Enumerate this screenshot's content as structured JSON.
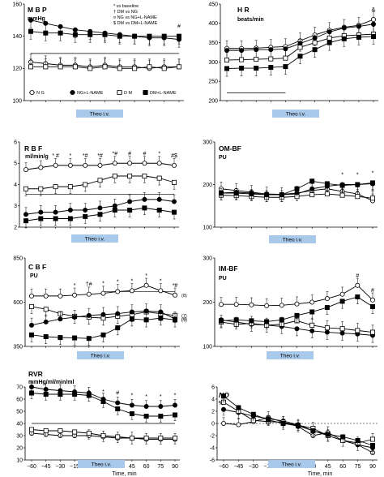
{
  "colors": {
    "theo_box": "#a9c9ea",
    "line": "#000000",
    "open_fill": "#ffffff",
    "filled": "#000000"
  },
  "x_axis": {
    "ticks": [
      -60,
      -45,
      -30,
      -15,
      0,
      15,
      30,
      45,
      60,
      75,
      90
    ],
    "tick_labels": [
      "−60",
      "−45",
      "−30",
      "−15",
      "0",
      "15",
      "30",
      "45",
      "60",
      "75",
      "90"
    ],
    "label": "Time, min"
  },
  "theo_label": "Theo i.v.",
  "legend_note": [
    "* vs baseline",
    "† DM vs NG",
    "¤ NG vs NG+L-NAME",
    "$ DM vs DM+L-NAME"
  ],
  "legend_series": [
    "N G",
    "NG+L-NAME",
    "D M",
    "DM+L-NAME"
  ],
  "chart_data": [
    {
      "id": "mbp",
      "type": "line",
      "title": "M B P",
      "unit": "mmHg",
      "ylim": [
        100,
        160
      ],
      "yticks": [
        100,
        120,
        140,
        160
      ],
      "x": [
        -60,
        -45,
        -30,
        -15,
        0,
        15,
        30,
        45,
        60,
        75,
        90
      ],
      "series": [
        {
          "name": "N G",
          "marker": "circle-open",
          "values": [
            124,
            123,
            122,
            122,
            121,
            122,
            121,
            121,
            120,
            121,
            121
          ]
        },
        {
          "name": "NG+L-NAME",
          "marker": "circle-filled",
          "values": [
            150,
            148,
            146,
            144,
            143,
            142,
            141,
            140,
            139,
            139,
            138
          ]
        },
        {
          "name": "D M",
          "marker": "square-open",
          "values": [
            121,
            121,
            121,
            121,
            120,
            121,
            120,
            120,
            121,
            120,
            121
          ]
        },
        {
          "name": "DM+L-NAME",
          "marker": "square-filled",
          "values": [
            143,
            142,
            142,
            141,
            141,
            141,
            140,
            140,
            140,
            140,
            140
          ]
        }
      ],
      "annotations": [
        "#"
      ]
    },
    {
      "id": "hr",
      "type": "line",
      "title": "H R",
      "unit": "beats/min",
      "ylim": [
        200,
        450
      ],
      "yticks": [
        200,
        250,
        300,
        350,
        400,
        450
      ],
      "x": [
        -60,
        -45,
        -30,
        -15,
        0,
        15,
        30,
        45,
        60,
        75,
        90
      ],
      "series": [
        {
          "name": "N G",
          "marker": "circle-open",
          "values": [
            335,
            335,
            336,
            338,
            340,
            355,
            370,
            382,
            390,
            395,
            410
          ]
        },
        {
          "name": "NG+L-NAME",
          "marker": "circle-filled",
          "values": [
            330,
            330,
            332,
            332,
            334,
            348,
            362,
            378,
            388,
            392,
            398
          ]
        },
        {
          "name": "D M",
          "marker": "square-open",
          "values": [
            305,
            306,
            307,
            308,
            310,
            338,
            350,
            362,
            368,
            370,
            372
          ]
        },
        {
          "name": "DM+L-NAME",
          "marker": "square-filled",
          "values": [
            283,
            284,
            284,
            286,
            288,
            315,
            332,
            350,
            360,
            364,
            366
          ]
        }
      ],
      "annotations": [
        "&"
      ]
    },
    {
      "id": "rbf",
      "type": "line",
      "title": "R B F",
      "unit": "ml/min/g",
      "ylim": [
        2,
        6
      ],
      "yticks": [
        2,
        3,
        4,
        5,
        6
      ],
      "x": [
        -60,
        -45,
        -30,
        -15,
        0,
        15,
        30,
        45,
        60,
        75,
        90
      ],
      "series": [
        {
          "name": "N G",
          "marker": "circle-open",
          "values": [
            4.7,
            4.8,
            4.9,
            4.9,
            4.9,
            4.9,
            5.0,
            5.0,
            5.0,
            5.0,
            4.9
          ]
        },
        {
          "name": "D M",
          "marker": "square-open",
          "values": [
            3.8,
            3.8,
            3.9,
            3.9,
            4.0,
            4.2,
            4.4,
            4.4,
            4.4,
            4.3,
            4.1
          ]
        },
        {
          "name": "NG+L-NAME",
          "marker": "circle-filled",
          "values": [
            2.6,
            2.7,
            2.7,
            2.8,
            2.8,
            2.9,
            3.0,
            3.2,
            3.3,
            3.3,
            3.2
          ]
        },
        {
          "name": "DM+L-NAME",
          "marker": "square-filled",
          "values": [
            2.3,
            2.4,
            2.4,
            2.4,
            2.5,
            2.6,
            2.8,
            2.8,
            2.9,
            2.8,
            2.7
          ]
        }
      ],
      "annotations": [
        "* #",
        "*",
        "*#",
        "*#",
        "*#",
        "#",
        "#",
        "*",
        "#$"
      ]
    },
    {
      "id": "om_bf",
      "type": "line",
      "title": "OM-BF",
      "unit": "PU",
      "ylim": [
        100,
        300
      ],
      "yticks": [
        100,
        200,
        300
      ],
      "x": [
        -60,
        -45,
        -30,
        -15,
        0,
        15,
        30,
        45,
        60,
        75,
        90
      ],
      "series": [
        {
          "name": "N G",
          "marker": "circle-open",
          "values": [
            190,
            186,
            182,
            178,
            177,
            180,
            186,
            190,
            184,
            178,
            162
          ]
        },
        {
          "name": "NG+L-NAME",
          "marker": "circle-filled",
          "values": [
            180,
            182,
            180,
            176,
            176,
            178,
            190,
            196,
            200,
            200,
            202
          ]
        },
        {
          "name": "D M",
          "marker": "square-open",
          "values": [
            175,
            174,
            172,
            170,
            170,
            172,
            176,
            178,
            175,
            172,
            168
          ]
        },
        {
          "name": "DM+L-NAME",
          "marker": "square-filled",
          "values": [
            180,
            180,
            178,
            176,
            176,
            190,
            208,
            202,
            198,
            200,
            204
          ]
        }
      ],
      "annotations": [
        "*",
        "*",
        "*"
      ]
    },
    {
      "id": "cbf",
      "type": "line",
      "title": "C B F",
      "unit": "PU",
      "ylim": [
        350,
        850
      ],
      "yticks": [
        350,
        600,
        850
      ],
      "x": [
        -60,
        -45,
        -30,
        -15,
        0,
        15,
        30,
        45,
        60,
        75,
        90
      ],
      "series": [
        {
          "name": "N G",
          "marker": "circle-open",
          "values": [
            635,
            635,
            635,
            640,
            645,
            650,
            660,
            665,
            695,
            665,
            640
          ]
        },
        {
          "name": "D M",
          "marker": "square-open",
          "values": [
            575,
            560,
            535,
            520,
            515,
            510,
            520,
            530,
            545,
            535,
            525
          ]
        },
        {
          "name": "NG+L-NAME",
          "marker": "circle-filled",
          "values": [
            470,
            488,
            505,
            515,
            525,
            530,
            535,
            545,
            550,
            545,
            505
          ]
        },
        {
          "name": "DM+L-NAME",
          "marker": "square-filled",
          "values": [
            415,
            405,
            400,
            398,
            395,
            415,
            455,
            505,
            500,
            510,
            500
          ]
        }
      ],
      "side_labels": [
        "(8)",
        "(7)",
        "(6)",
        "(7)"
      ],
      "annotations": [
        "*",
        "†#",
        "*",
        "*",
        "*",
        "*",
        "*",
        "*#"
      ]
    },
    {
      "id": "im_bf",
      "type": "line",
      "title": "IM-BF",
      "unit": "PU",
      "ylim": [
        100,
        300
      ],
      "yticks": [
        100,
        200,
        300
      ],
      "x": [
        -60,
        -45,
        -30,
        -15,
        0,
        15,
        30,
        45,
        60,
        75,
        90
      ],
      "series": [
        {
          "name": "N G",
          "marker": "circle-open",
          "values": [
            195,
            195,
            194,
            192,
            193,
            196,
            200,
            208,
            218,
            238,
            205
          ]
        },
        {
          "name": "NG+L-NAME",
          "marker": "circle-filled",
          "values": [
            160,
            155,
            150,
            148,
            145,
            140,
            135,
            132,
            130,
            128,
            125
          ]
        },
        {
          "name": "D M",
          "marker": "square-open",
          "values": [
            155,
            150,
            152,
            148,
            150,
            158,
            148,
            142,
            140,
            136,
            132
          ]
        },
        {
          "name": "DM+L-NAME",
          "marker": "square-filled",
          "values": [
            158,
            160,
            158,
            156,
            160,
            170,
            178,
            188,
            202,
            212,
            190
          ]
        }
      ],
      "annotations": [
        "#",
        "#"
      ]
    },
    {
      "id": "rvr",
      "type": "line",
      "title": "RVR",
      "unit": "mmHg/ml/min/ml",
      "ylim": [
        10,
        70
      ],
      "yticks": [
        10,
        20,
        30,
        40,
        50,
        60,
        70
      ],
      "x": [
        -60,
        -45,
        -30,
        -15,
        0,
        15,
        30,
        45,
        60,
        75,
        90
      ],
      "series": [
        {
          "name": "NG+L-NAME",
          "marker": "circle-filled",
          "values": [
            70,
            68,
            67,
            66,
            65,
            60,
            57,
            55,
            54,
            54,
            55
          ]
        },
        {
          "name": "DM+L-NAME",
          "marker": "square-filled",
          "values": [
            65,
            64,
            64,
            64,
            63,
            58,
            52,
            48,
            46,
            46,
            47
          ]
        },
        {
          "name": "N G",
          "marker": "circle-open",
          "values": [
            32,
            31,
            30,
            30,
            30,
            29,
            28,
            28,
            27,
            27,
            27
          ]
        },
        {
          "name": "D M",
          "marker": "square-open",
          "values": [
            35,
            34,
            34,
            33,
            32,
            30,
            29,
            28,
            28,
            28,
            28
          ]
        }
      ],
      "annotations": [
        "*",
        "*",
        "*",
        "*",
        "*",
        "*",
        "#",
        "*",
        "*",
        "*",
        "*"
      ]
    },
    {
      "id": "no",
      "type": "line",
      "title": "NO",
      "unit": "%",
      "ylim": [
        -6,
        6
      ],
      "yticks": [
        -6,
        -4,
        -2,
        0,
        2,
        4,
        6
      ],
      "x": [
        -60,
        -45,
        -30,
        -15,
        0,
        15,
        30,
        45,
        60,
        75,
        90
      ],
      "series": [
        {
          "name": "N G",
          "marker": "circle-open",
          "values": [
            0.0,
            -0.2,
            0.3,
            1.0,
            0.2,
            -0.5,
            -2.0,
            -1.5,
            -2.8,
            -3.5,
            -4.8
          ]
        },
        {
          "name": "NG+L-NAME",
          "marker": "circle-filled",
          "values": [
            2.3,
            1.8,
            1.2,
            0.8,
            0.4,
            -0.2,
            -1.2,
            -2.0,
            -2.8,
            -3.5,
            -4.0
          ]
        },
        {
          "name": "D M",
          "marker": "square-open",
          "values": [
            3.5,
            2.0,
            0.5,
            0.3,
            0.2,
            -0.3,
            -0.8,
            -2.0,
            -2.8,
            -3.2,
            -2.6
          ]
        },
        {
          "name": "DM+L-NAME",
          "marker": "square-filled",
          "values": [
            4.5,
            2.6,
            1.5,
            0.6,
            0.0,
            -0.4,
            -1.2,
            -1.8,
            -2.2,
            -2.8,
            -3.6
          ]
        }
      ],
      "annotations": []
    }
  ]
}
